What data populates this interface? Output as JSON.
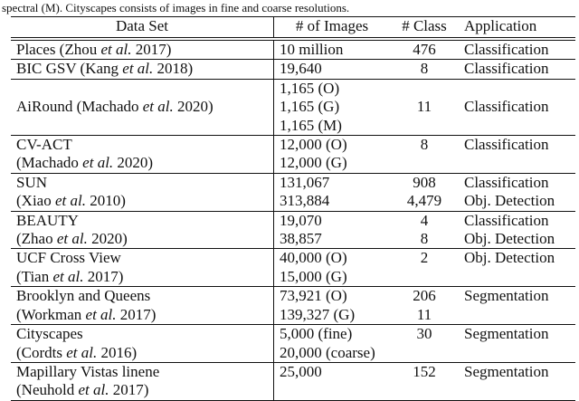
{
  "caption": "spectral (M). Cityscapes consists of images in fine and coarse resolutions.",
  "headers": [
    "Data Set",
    "# of Images",
    "# Class",
    "Application"
  ],
  "rows": [
    {
      "dataset": [
        "Places (Zhou et al. 2017)"
      ],
      "images": [
        "10 million"
      ],
      "classes": [
        "476"
      ],
      "application": [
        "Classification"
      ]
    },
    {
      "dataset": [
        "BIC GSV (Kang et al. 2018)"
      ],
      "images": [
        "19,640"
      ],
      "classes": [
        "8"
      ],
      "application": [
        "Classification"
      ]
    },
    {
      "dataset": [
        "",
        "AiRound (Machado et al. 2020)",
        ""
      ],
      "images": [
        "1,165 (O)",
        "1,165 (G)",
        "1,165 (M)"
      ],
      "classes": [
        "",
        "11",
        ""
      ],
      "application": [
        "",
        "Classification",
        ""
      ]
    },
    {
      "dataset": [
        "CV-ACT",
        "(Machado et al. 2020)"
      ],
      "images": [
        "12,000 (O)",
        "12,000 (G)"
      ],
      "classes": [
        "8",
        ""
      ],
      "application": [
        "Classification",
        ""
      ]
    },
    {
      "dataset": [
        "SUN",
        "(Xiao et al. 2010)"
      ],
      "images": [
        "131,067",
        "313,884"
      ],
      "classes": [
        "908",
        "4,479"
      ],
      "application": [
        "Classification",
        "Obj. Detection"
      ]
    },
    {
      "dataset": [
        "BEAUTY",
        "(Zhao et al. 2020)"
      ],
      "images": [
        "19,070",
        "38,857"
      ],
      "classes": [
        "4",
        "8"
      ],
      "application": [
        "Classification",
        "Obj. Detection"
      ]
    },
    {
      "dataset": [
        "UCF Cross View",
        "(Tian et al. 2017)"
      ],
      "images": [
        "40,000 (O)",
        "15,000 (G)"
      ],
      "classes": [
        "2",
        ""
      ],
      "application": [
        "Obj. Detection",
        ""
      ]
    },
    {
      "dataset": [
        "Brooklyn and Queens",
        "(Workman et al. 2017)"
      ],
      "images": [
        "73,921 (O)",
        "139,327 (G)"
      ],
      "classes": [
        "206",
        "11"
      ],
      "application": [
        "Segmentation",
        ""
      ]
    },
    {
      "dataset": [
        "Cityscapes",
        "(Cordts et al. 2016)"
      ],
      "images": [
        "5,000 (fine)",
        "20,000 (coarse)"
      ],
      "classes": [
        "30",
        ""
      ],
      "application": [
        "Segmentation",
        ""
      ]
    },
    {
      "dataset": [
        "Mapillary Vistas linene",
        "(Neuhold et al. 2017)"
      ],
      "images": [
        "25,000",
        ""
      ],
      "classes": [
        "152",
        ""
      ],
      "application": [
        "Segmentation",
        ""
      ]
    }
  ]
}
